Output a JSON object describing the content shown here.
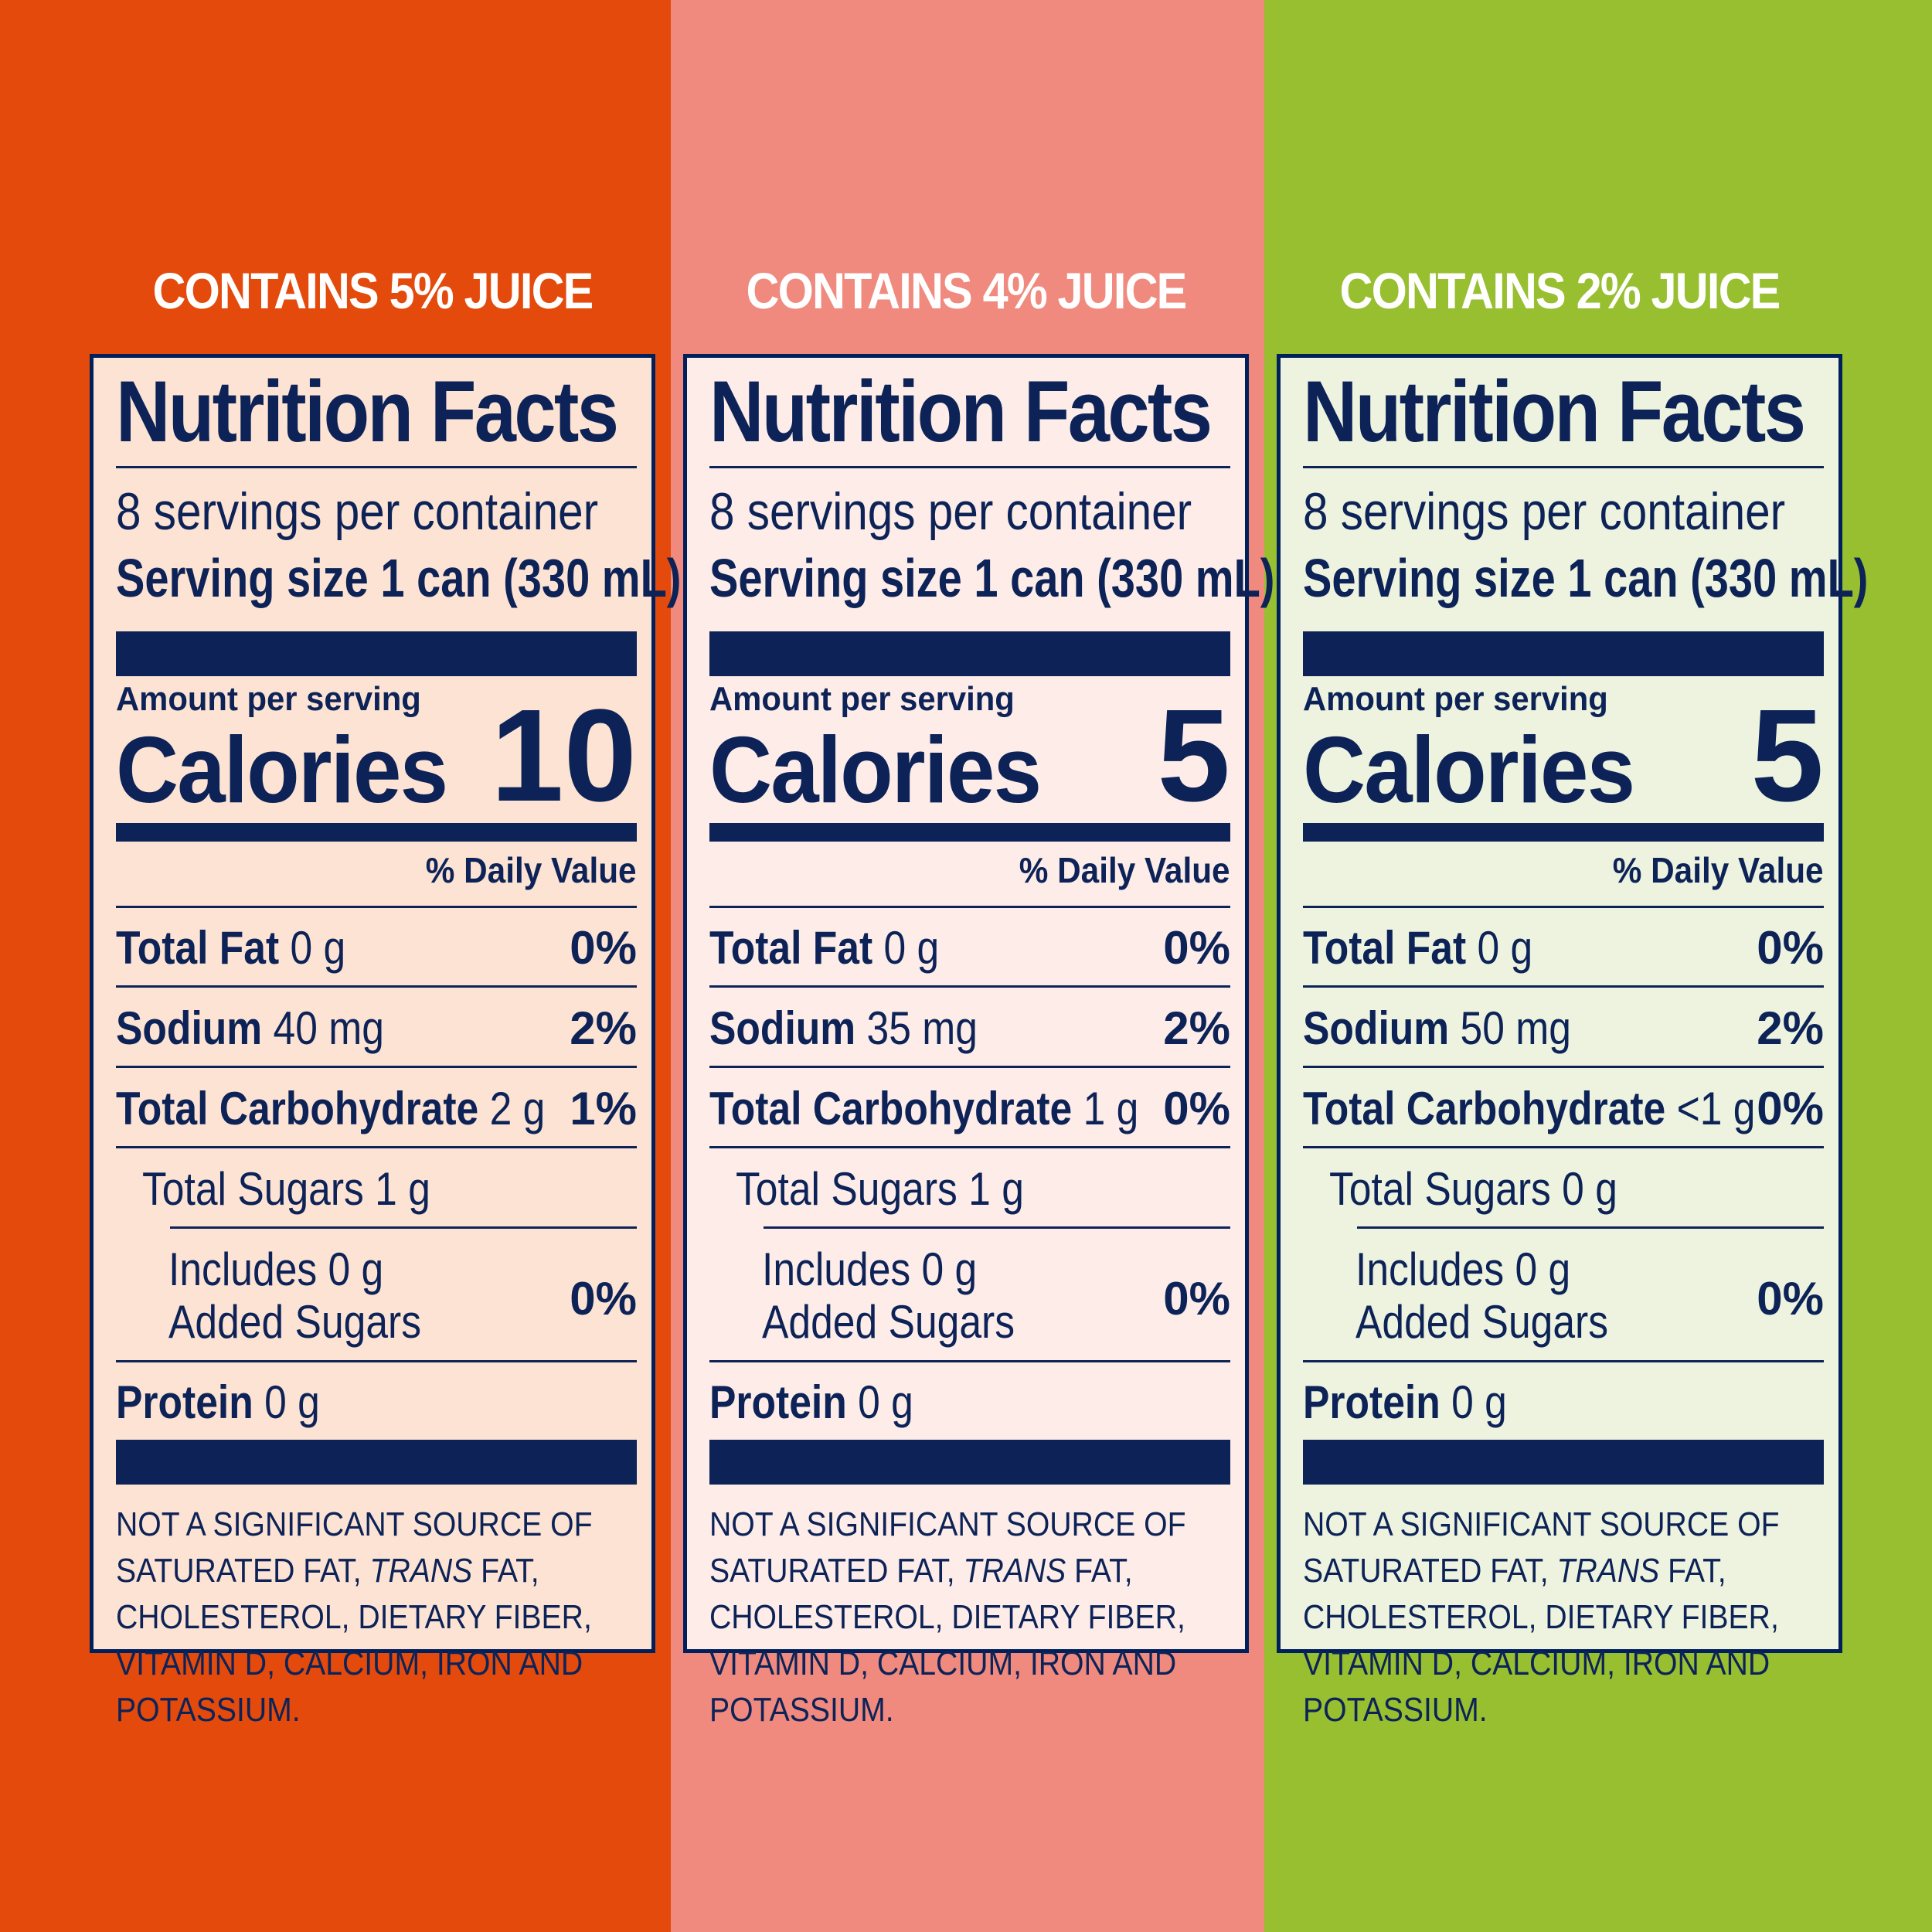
{
  "panels": [
    {
      "juice_label": "CONTAINS 5% JUICE",
      "band_color": "#e34a0c",
      "panel_bg": "#fde3d3",
      "title": "Nutrition Facts",
      "servings": "8 servings per container",
      "serving_size": "Serving size 1 can (330 mL)",
      "amount_label": "Amount per serving",
      "calories_label": "Calories",
      "calories": "10",
      "dv_header": "% Daily Value",
      "total_fat_label": "Total Fat",
      "total_fat_amount": "0 g",
      "total_fat_dv": "0%",
      "sodium_label": "Sodium",
      "sodium_amount": "40 mg",
      "sodium_dv": "2%",
      "carb_label": "Total Carbohydrate",
      "carb_amount": "2 g",
      "carb_dv": "1%",
      "sugars_label": "Total Sugars",
      "sugars_amount": "1 g",
      "includes_line1": "Includes 0 g",
      "includes_line2": "Added Sugars",
      "added_sugars_dv": "0%",
      "protein_label": "Protein",
      "protein_amount": "0 g",
      "footnote_a": "NOT A SIGNIFICANT SOURCE OF SATURATED FAT, ",
      "footnote_trans": "TRANS",
      "footnote_b": " FAT, CHOLESTEROL, DIETARY FIBER, VITAMIN D, CALCIUM, IRON AND POTASSIUM."
    },
    {
      "juice_label": "CONTAINS 4% JUICE",
      "band_color": "#f08a7e",
      "panel_bg": "#fdece8",
      "title": "Nutrition Facts",
      "servings": "8 servings per container",
      "serving_size": "Serving size 1 can (330 mL)",
      "amount_label": "Amount per serving",
      "calories_label": "Calories",
      "calories": "5",
      "dv_header": "% Daily Value",
      "total_fat_label": "Total Fat",
      "total_fat_amount": "0 g",
      "total_fat_dv": "0%",
      "sodium_label": "Sodium",
      "sodium_amount": "35 mg",
      "sodium_dv": "2%",
      "carb_label": "Total Carbohydrate",
      "carb_amount": "1 g",
      "carb_dv": "0%",
      "sugars_label": "Total Sugars",
      "sugars_amount": "1 g",
      "includes_line1": "Includes 0 g",
      "includes_line2": "Added Sugars",
      "added_sugars_dv": "0%",
      "protein_label": "Protein",
      "protein_amount": "0 g",
      "footnote_a": "NOT A SIGNIFICANT SOURCE OF SATURATED FAT, ",
      "footnote_trans": "TRANS",
      "footnote_b": " FAT, CHOLESTEROL, DIETARY FIBER, VITAMIN D, CALCIUM, IRON AND POTASSIUM."
    },
    {
      "juice_label": "CONTAINS 2% JUICE",
      "band_color": "#97bf30",
      "panel_bg": "#edf3df",
      "title": "Nutrition Facts",
      "servings": "8 servings per container",
      "serving_size": "Serving size 1 can (330 mL)",
      "amount_label": "Amount per serving",
      "calories_label": "Calories",
      "calories": "5",
      "dv_header": "% Daily Value",
      "total_fat_label": "Total Fat",
      "total_fat_amount": "0 g",
      "total_fat_dv": "0%",
      "sodium_label": "Sodium",
      "sodium_amount": "50 mg",
      "sodium_dv": "2%",
      "carb_label": "Total Carbohydrate",
      "carb_amount": "<1 g",
      "carb_dv": "0%",
      "sugars_label": "Total Sugars",
      "sugars_amount": "0 g",
      "includes_line1": "Includes 0 g",
      "includes_line2": "Added Sugars",
      "added_sugars_dv": "0%",
      "protein_label": "Protein",
      "protein_amount": "0 g",
      "footnote_a": "NOT A SIGNIFICANT SOURCE OF SATURATED FAT, ",
      "footnote_trans": "TRANS",
      "footnote_b": " FAT, CHOLESTEROL, DIETARY FIBER, VITAMIN D, CALCIUM, IRON AND POTASSIUM."
    }
  ]
}
